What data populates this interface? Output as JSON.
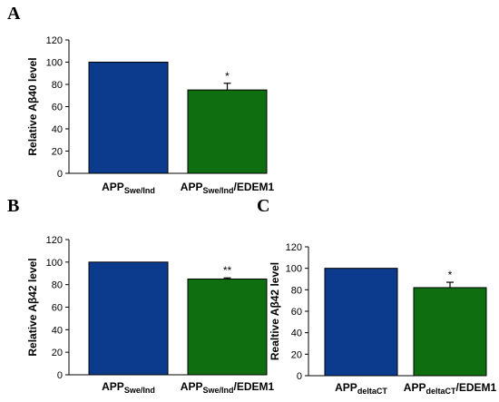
{
  "panels": [
    {
      "letter": "A"
    },
    {
      "letter": "B"
    },
    {
      "letter": "C"
    }
  ],
  "colors": {
    "bar1": "#0c3a8c",
    "bar2": "#0f6e0f",
    "axis": "#000000"
  },
  "chart_data": [
    {
      "type": "bar",
      "ylabel": "Relative Aβ40 level",
      "ylim": [
        0,
        120
      ],
      "yticks": [
        0,
        20,
        40,
        60,
        80,
        100,
        120
      ],
      "categories": [
        {
          "main": "APP",
          "sub": "Swe/Ind",
          "suffix": ""
        },
        {
          "main": "APP",
          "sub": "Swe/Ind",
          "suffix": "/EDEM1"
        }
      ],
      "values": [
        100,
        75
      ],
      "errors": [
        0,
        6
      ],
      "significance": [
        "",
        "*"
      ]
    },
    {
      "type": "bar",
      "ylabel": "Relative Aβ42 level",
      "ylim": [
        0,
        120
      ],
      "yticks": [
        0,
        20,
        40,
        60,
        80,
        100,
        120
      ],
      "categories": [
        {
          "main": "APP",
          "sub": "Swe/Ind",
          "suffix": ""
        },
        {
          "main": "APP",
          "sub": "Swe/Ind",
          "suffix": "/EDEM1"
        }
      ],
      "values": [
        100,
        85
      ],
      "errors": [
        0,
        1
      ],
      "significance": [
        "",
        "**"
      ]
    },
    {
      "type": "bar",
      "ylabel": "Realtive Aβ42 level",
      "ylim": [
        0,
        120
      ],
      "yticks": [
        0,
        20,
        40,
        60,
        80,
        100,
        120
      ],
      "categories": [
        {
          "main": "APP",
          "sub": "deltaCT",
          "suffix": ""
        },
        {
          "main": "APP",
          "sub": "deltaCT",
          "suffix": "/EDEM1"
        }
      ],
      "values": [
        100,
        82
      ],
      "errors": [
        0,
        5
      ],
      "significance": [
        "",
        "*"
      ]
    }
  ]
}
